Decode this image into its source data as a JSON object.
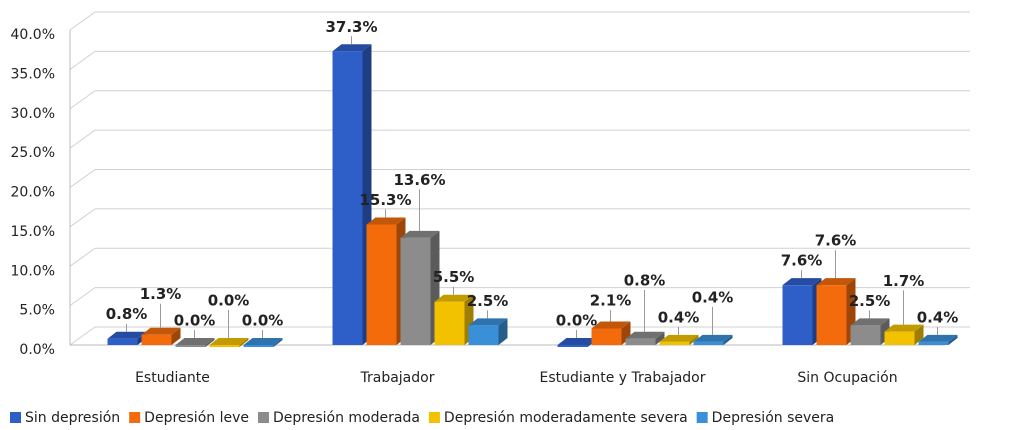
{
  "chart_data": {
    "type": "bar3d",
    "categories": [
      "Estudiante",
      "Trabajador",
      "Estudiante y Trabajador",
      "Sin Ocupación"
    ],
    "series": [
      {
        "name": "Sin depresión",
        "color": "#2e5fc9",
        "values": [
          0.8,
          37.3,
          0.0,
          7.6
        ],
        "value_labels": [
          "0.8%",
          "37.3%",
          "0.0%",
          "7.6%"
        ]
      },
      {
        "name": "Depresión leve",
        "color": "#f36b0b",
        "values": [
          1.3,
          15.3,
          2.1,
          7.6
        ],
        "value_labels": [
          "1.3%",
          "15.3%",
          "2.1%",
          "7.6%"
        ]
      },
      {
        "name": "Depresión moderada",
        "color": "#8c8c8c",
        "values": [
          0.0,
          13.6,
          0.8,
          2.5
        ],
        "value_labels": [
          "0.0%",
          "13.6%",
          "0.8%",
          "2.5%"
        ]
      },
      {
        "name": "Depresión moderadamente severa",
        "color": "#f2c200",
        "values": [
          0.0,
          5.5,
          0.4,
          1.7
        ],
        "value_labels": [
          "0.0%",
          "5.5%",
          "0.4%",
          "1.7%"
        ]
      },
      {
        "name": "Depresión severa",
        "color": "#3a8fd9",
        "values": [
          0.0,
          2.5,
          0.4,
          0.4
        ],
        "value_labels": [
          "0.0%",
          "2.5%",
          "0.4%",
          "0.4%"
        ]
      }
    ],
    "ylim": [
      0,
      40
    ],
    "yticks": [
      {
        "value": 0,
        "label": "0.0%"
      },
      {
        "value": 5,
        "label": "5.0%"
      },
      {
        "value": 10,
        "label": "10.0%"
      },
      {
        "value": 15,
        "label": "15.0%"
      },
      {
        "value": 20,
        "label": "20.0%"
      },
      {
        "value": 25,
        "label": "25.0%"
      },
      {
        "value": 30,
        "label": "30.0%"
      },
      {
        "value": 35,
        "label": "35.0%"
      },
      {
        "value": 40,
        "label": "40.0%"
      }
    ],
    "grid": true,
    "legend": "bottom"
  }
}
